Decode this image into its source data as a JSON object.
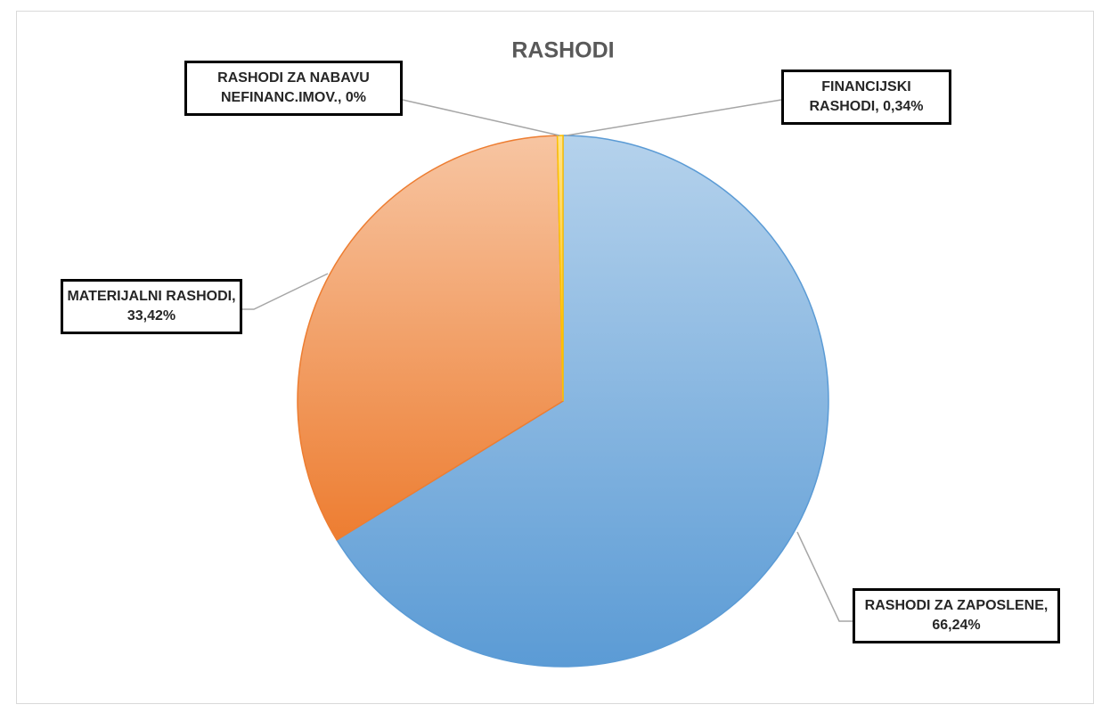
{
  "chart_data": {
    "type": "pie",
    "title": "RASHODI",
    "series": [
      {
        "values": [
          66.24,
          33.42,
          0,
          0.34
        ],
        "value_labels": [
          "RASHODI ZA ZAPOSLENE, 66,24%",
          "MATERIJALNI RASHODI, 33,42%",
          "RASHODI ZA NABAVU NEFINANC.IMOV., 0%",
          "FINANCIJSKI RASHODI, 0,34%"
        ],
        "colors": [
          "#5b9bd5",
          "#ed7d31",
          "#a5a5a5",
          "#ffc000"
        ]
      }
    ]
  }
}
